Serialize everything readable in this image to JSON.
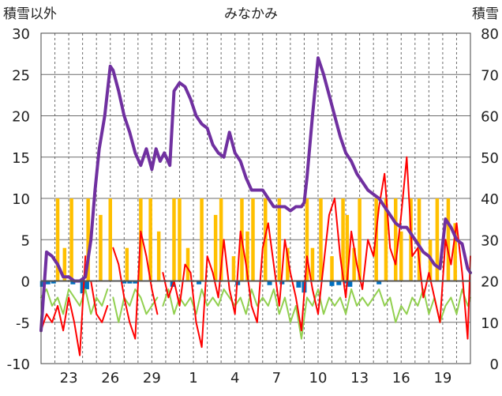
{
  "chart_data": {
    "type": "line",
    "title": "みなかみ",
    "left_axis": {
      "label": "積雪以外",
      "ylim": [
        -10,
        30
      ],
      "ticks": [
        "30",
        "25",
        "20",
        "15",
        "10",
        "5",
        "0",
        "-5",
        "-10"
      ]
    },
    "right_axis": {
      "label": "積雪",
      "ylim": [
        0,
        80
      ],
      "ticks": [
        "80",
        "70",
        "60",
        "50",
        "40",
        "30",
        "20",
        "10",
        "0"
      ]
    },
    "x_axis": {
      "range_days": [
        0,
        31
      ],
      "tick_labels": [
        "23",
        "26",
        "29",
        "1",
        "4",
        "7",
        "10",
        "13",
        "16",
        "19"
      ],
      "tick_positions": [
        2,
        5,
        8,
        11,
        14,
        17,
        20,
        23,
        26,
        29
      ],
      "vertical_dashed_grid": true
    },
    "grid": true,
    "colors": {
      "snow_depth": "#7030a0",
      "precip": "#ffc000",
      "sunshine": "#0070c0",
      "max_temp": "#ff0000",
      "min_temp": "#92d050"
    },
    "series": [
      {
        "key": "snow_depth",
        "axis": "right",
        "x": [
          0.0,
          0.4,
          0.8,
          1.2,
          1.6,
          2.0,
          2.4,
          2.8,
          3.2,
          3.6,
          3.9,
          4.2,
          4.6,
          5.0,
          5.2,
          5.6,
          6.0,
          6.4,
          6.8,
          7.2,
          7.6,
          8.0,
          8.3,
          8.6,
          8.9,
          9.3,
          9.6,
          10.0,
          10.4,
          10.8,
          11.2,
          11.6,
          12.0,
          12.4,
          12.8,
          13.2,
          13.6,
          14.0,
          14.4,
          14.8,
          15.2,
          15.6,
          16.0,
          16.4,
          16.8,
          17.2,
          17.6,
          18.0,
          18.4,
          18.8,
          19.0,
          19.2,
          19.6,
          20.0,
          20.4,
          20.8,
          21.2,
          21.6,
          22.0,
          22.4,
          22.8,
          23.2,
          23.6,
          24.0,
          24.4,
          24.8,
          25.2,
          25.6,
          26.0,
          26.4,
          26.8,
          27.2,
          27.6,
          28.0,
          28.4,
          28.8,
          29.2,
          29.6,
          30.0,
          30.4,
          30.8,
          31.0
        ],
        "values": [
          8,
          27,
          26,
          24,
          21,
          21,
          20,
          20,
          21,
          30,
          42,
          52,
          60,
          72,
          71,
          66,
          60,
          56,
          51,
          48,
          52,
          47,
          52,
          49,
          51,
          48,
          66,
          68,
          67,
          64,
          60,
          58,
          57,
          53,
          51,
          50,
          56,
          51,
          49,
          45,
          42,
          42,
          42,
          40,
          38,
          38,
          38,
          37,
          38,
          38,
          39,
          45,
          60,
          74,
          70,
          65,
          60,
          55,
          51,
          49,
          46,
          44,
          42,
          41,
          40,
          38,
          36,
          34,
          33,
          33,
          31,
          29,
          27,
          26,
          24,
          23,
          35,
          33,
          30,
          29,
          23,
          22
        ]
      },
      {
        "key": "max_temp",
        "axis": "left",
        "x": [
          0.0,
          0.4,
          0.8,
          1.2,
          1.6,
          2.0,
          2.4,
          2.8,
          3.2,
          3.6,
          4.0,
          4.4,
          4.8,
          5.2,
          5.6,
          6.0,
          6.4,
          6.8,
          7.2,
          7.6,
          8.0,
          8.4,
          8.8,
          9.2,
          9.6,
          10.0,
          10.4,
          10.8,
          11.2,
          11.6,
          12.0,
          12.4,
          12.8,
          13.2,
          13.6,
          14.0,
          14.4,
          14.8,
          15.2,
          15.6,
          16.0,
          16.4,
          16.8,
          17.2,
          17.6,
          18.0,
          18.4,
          18.8,
          19.2,
          19.6,
          20.0,
          20.4,
          20.8,
          21.2,
          21.6,
          22.0,
          22.4,
          22.8,
          23.2,
          23.6,
          24.0,
          24.4,
          24.8,
          25.2,
          25.6,
          26.0,
          26.4,
          26.8,
          27.2,
          27.6,
          28.0,
          28.4,
          28.8,
          29.2,
          29.6,
          30.0,
          30.4,
          30.8,
          31.0
        ],
        "values": [
          -6,
          -4,
          -5,
          -3,
          -6,
          -2,
          -5,
          -9,
          3,
          0,
          -4,
          -5,
          -3,
          4,
          2,
          -2,
          -5,
          -7,
          6,
          3,
          -1,
          -4,
          1,
          -2,
          0,
          -3,
          2,
          1,
          -5,
          -8,
          3,
          1,
          -2,
          5,
          -1,
          -4,
          6,
          2,
          -3,
          -5,
          4,
          7,
          2,
          -3,
          5,
          1,
          -2,
          -6,
          3,
          -1,
          -4,
          2,
          8,
          10,
          3,
          -2,
          6,
          2,
          -1,
          5,
          3,
          9,
          13,
          4,
          2,
          8,
          15,
          3,
          4,
          -2,
          1,
          -2,
          -5,
          5,
          2,
          7,
          1,
          -7,
          3
        ],
        "gaps": [
          3.4,
          5.2,
          8.8
        ]
      },
      {
        "key": "min_temp",
        "axis": "left",
        "x": [
          0.0,
          0.4,
          0.8,
          1.2,
          1.6,
          2.0,
          2.4,
          2.8,
          3.2,
          3.6,
          4.0,
          4.4,
          4.8,
          5.2,
          5.6,
          6.0,
          6.4,
          6.8,
          7.2,
          7.6,
          8.0,
          8.4,
          8.8,
          9.2,
          9.6,
          10.0,
          10.4,
          10.8,
          11.2,
          11.6,
          12.0,
          12.4,
          12.8,
          13.2,
          13.6,
          14.0,
          14.4,
          14.8,
          15.2,
          15.6,
          16.0,
          16.4,
          16.8,
          17.2,
          17.6,
          18.0,
          18.4,
          18.8,
          19.2,
          19.6,
          20.0,
          20.4,
          20.8,
          21.2,
          21.6,
          22.0,
          22.4,
          22.8,
          23.2,
          23.6,
          24.0,
          24.4,
          24.8,
          25.2,
          25.6,
          26.0,
          26.4,
          26.8,
          27.2,
          27.6,
          28.0,
          28.4,
          28.8,
          29.2,
          29.6,
          30.0,
          30.4,
          30.8,
          31.0
        ],
        "values": [
          -2,
          -1,
          -3,
          -2,
          -4,
          -1,
          -2,
          -3,
          -1,
          -4,
          -2,
          -3,
          -1,
          -2,
          -5,
          -2,
          -3,
          -1,
          -2,
          -4,
          -3,
          -2,
          -3,
          -1,
          -4,
          -2,
          -3,
          -2,
          -4,
          -1,
          -3,
          -2,
          -3,
          -1,
          -2,
          -3,
          -2,
          -4,
          -1,
          -3,
          -2,
          -3,
          -1,
          -4,
          -2,
          -5,
          -3,
          -7,
          -2,
          -3,
          -1,
          -4,
          -2,
          -3,
          -2,
          -4,
          -1,
          -3,
          -2,
          -3,
          -2,
          -1,
          -3,
          -2,
          -5,
          -3,
          -4,
          -2,
          -3,
          -1,
          -4,
          -2,
          -5,
          -3,
          -2,
          -4,
          -1,
          -3,
          -2
        ],
        "gaps": [
          5.2,
          8.8
        ]
      },
      {
        "key": "precip",
        "axis": "left",
        "type": "bar",
        "x": [
          1.2,
          1.7,
          2.2,
          3.4,
          4.3,
          5.0,
          6.2,
          7.2,
          7.9,
          8.5,
          9.6,
          10.0,
          10.6,
          11.6,
          12.6,
          13.0,
          13.9,
          14.5,
          14.9,
          15.3,
          16.2,
          17.2,
          17.8,
          19.2,
          19.6,
          20.2,
          21.0,
          21.8,
          22.1,
          22.6,
          23.0,
          24.2,
          24.9,
          25.6,
          26.0,
          26.7,
          27.3,
          28.1,
          28.6,
          29.4,
          29.9
        ],
        "values": [
          10,
          4,
          10,
          10,
          8,
          10,
          4,
          10,
          10,
          6,
          10,
          10,
          4,
          10,
          8,
          10,
          3,
          10,
          6,
          10,
          10,
          10,
          4,
          10,
          4,
          10,
          3,
          10,
          8,
          4,
          10,
          10,
          10,
          10,
          6,
          10,
          10,
          5,
          10,
          10,
          7
        ]
      },
      {
        "key": "sunshine",
        "axis": "left",
        "type": "bar",
        "x": [
          0.1,
          0.5,
          0.9,
          2.3,
          3.0,
          3.3,
          6.0,
          6.4,
          6.8,
          9.5,
          11.4,
          14.2,
          16.5,
          17.4,
          18.6,
          19.0,
          21.0,
          21.5,
          22.0,
          22.3,
          24.4
        ],
        "values": [
          -0.7,
          -0.4,
          -0.3,
          -0.4,
          -1.5,
          -1.0,
          -0.3,
          -0.3,
          -0.3,
          -0.7,
          -0.4,
          -0.5,
          -0.5,
          -0.4,
          -0.8,
          -1.4,
          -0.6,
          -0.5,
          -0.3,
          -0.7,
          -0.4
        ]
      }
    ]
  }
}
